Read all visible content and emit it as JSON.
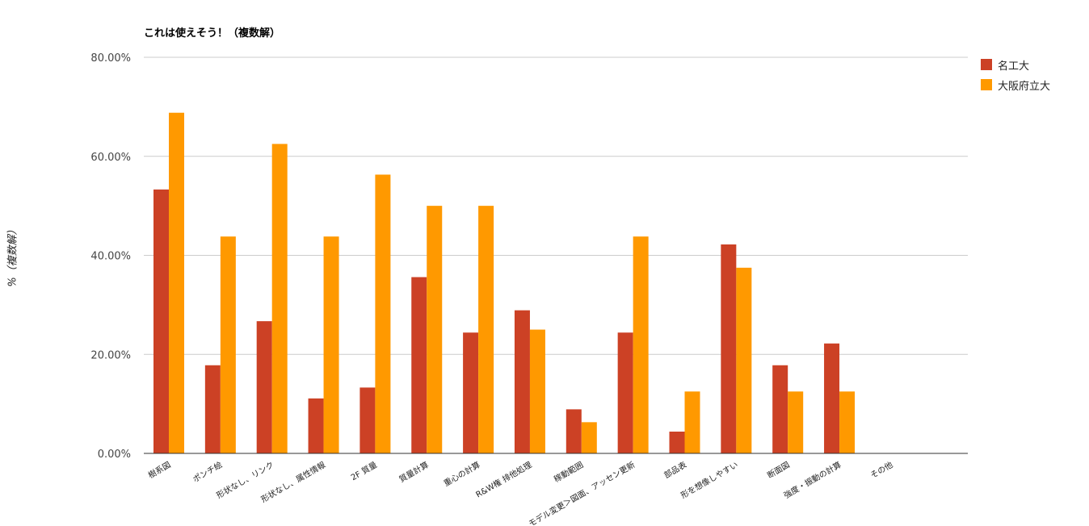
{
  "chart_data": {
    "type": "bar",
    "title": "これは使えそう！（複数解）",
    "xlabel": "",
    "ylabel": "%（複数解）",
    "ylim": [
      0,
      80
    ],
    "y_ticks": [
      "0.00%",
      "20.00%",
      "40.00%",
      "60.00%",
      "80.00%"
    ],
    "grid": true,
    "legend_position": "right",
    "categories": [
      "樹系図",
      "ポンチ絵",
      "形状なし、リンク",
      "形状なし、属性情報",
      "2F 質量",
      "質量計算",
      "重心の計算",
      "R&W権 排他処理",
      "稼動範囲",
      "モデル変更＞図面、アッセン更新",
      "部品表",
      "形を想像しやすい",
      "断面図",
      "強度・振動の計算",
      "その他"
    ],
    "series": [
      {
        "name": "名工大",
        "color": "#cc4125",
        "values": [
          53.3,
          17.8,
          26.7,
          11.1,
          13.3,
          35.6,
          24.4,
          28.9,
          8.9,
          24.4,
          4.4,
          42.2,
          17.8,
          22.2,
          0
        ]
      },
      {
        "name": "大阪府立大",
        "color": "#ff9900",
        "values": [
          68.8,
          43.8,
          62.5,
          43.8,
          56.3,
          50.0,
          50.0,
          25.0,
          6.3,
          43.8,
          12.5,
          37.5,
          12.5,
          12.5,
          0
        ]
      }
    ]
  }
}
